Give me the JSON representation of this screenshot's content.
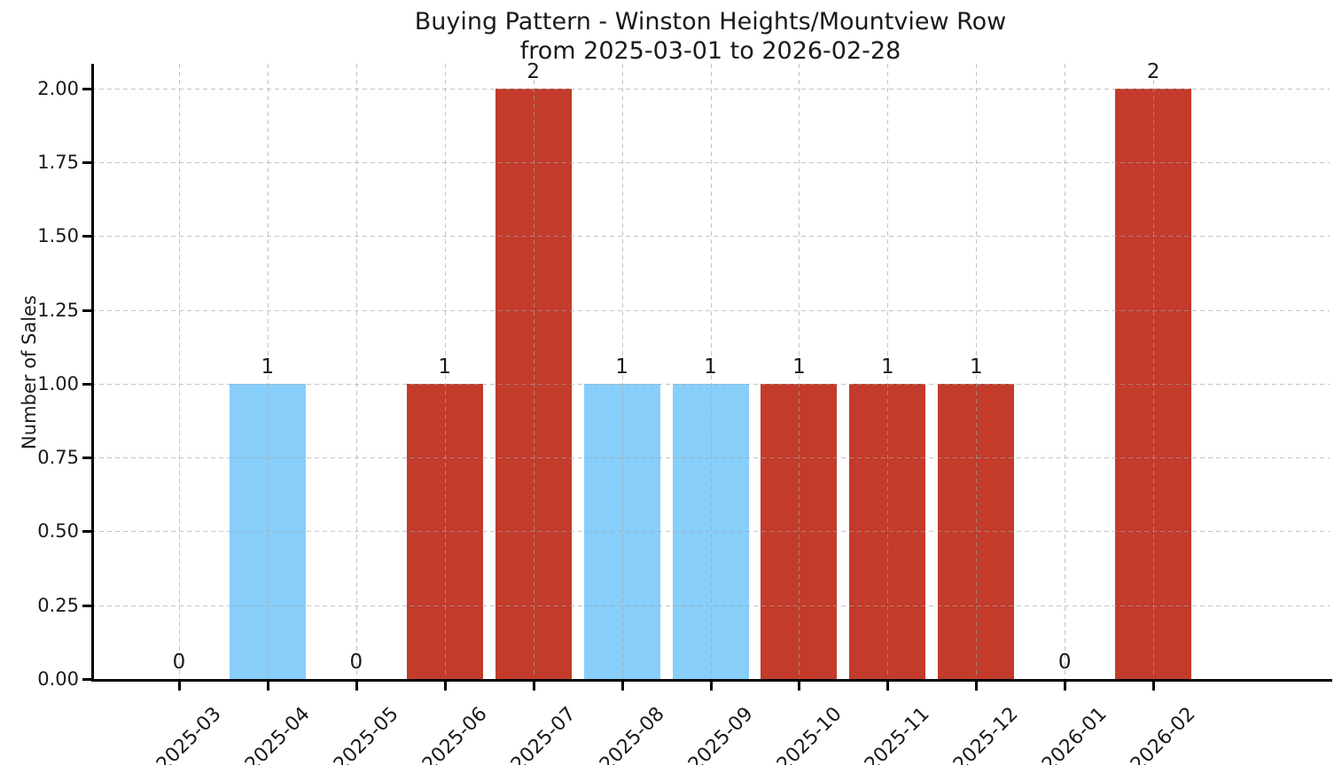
{
  "chart_data": {
    "type": "bar",
    "title_lines": [
      "Buying Pattern - Winston Heights/Mountview Row",
      "from 2025-03-01 to 2026-02-28"
    ],
    "xlabel": "",
    "ylabel": "Number of Sales",
    "categories": [
      "2025-03",
      "2025-04",
      "2025-05",
      "2025-06",
      "2025-07",
      "2025-08",
      "2025-09",
      "2025-10",
      "2025-11",
      "2025-12",
      "2026-01",
      "2026-02"
    ],
    "values": [
      0,
      1,
      0,
      1,
      2,
      1,
      1,
      1,
      1,
      1,
      0,
      2
    ],
    "bar_labels": [
      "0",
      "1",
      "0",
      "1",
      "2",
      "1",
      "1",
      "1",
      "1",
      "1",
      "0",
      "2"
    ],
    "bar_colors": [
      "#C23B2B",
      "#87CEFA",
      "#C23B2B",
      "#C23B2B",
      "#C23B2B",
      "#87CEFA",
      "#87CEFA",
      "#C23B2B",
      "#C23B2B",
      "#C23B2B",
      "#C23B2B",
      "#C23B2B"
    ],
    "ytick_values": [
      0,
      0.25,
      0.5,
      0.75,
      1.0,
      1.25,
      1.5,
      1.75,
      2.0
    ],
    "ytick_labels": [
      "0.00",
      "0.25",
      "0.50",
      "0.75",
      "1.00",
      "1.25",
      "1.50",
      "1.75",
      "2.00"
    ],
    "ylim": [
      0,
      2.084
    ],
    "grid": {
      "visible": true,
      "style": "dashed",
      "axes": "both",
      "over_bars": true
    },
    "legend": null,
    "colors": {
      "bar_red": "#C23B2B",
      "bar_blue": "#87CEFA",
      "grid": "#cccccc",
      "axis": "#000000",
      "text": "#1a1a1a",
      "background": "#ffffff"
    }
  }
}
